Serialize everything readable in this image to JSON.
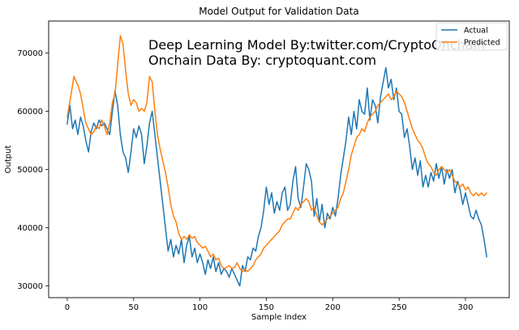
{
  "chart_data": {
    "type": "line",
    "title": "Model Output for Validation Data",
    "xlabel": "Sample Index",
    "ylabel": "Output",
    "xlim": [
      -14,
      333
    ],
    "ylim": [
      28000,
      75500
    ],
    "xticks": [
      0,
      50,
      100,
      150,
      200,
      250,
      300
    ],
    "yticks": [
      30000,
      40000,
      50000,
      60000,
      70000
    ],
    "grid": false,
    "legend_position": "top-right",
    "annotations": [
      "Deep Learning  Model By:twitter.com/CryptoOnchain",
      "Onchain Data By: cryptoquant.com"
    ],
    "series": [
      {
        "name": "Actual",
        "color": "#1f77b4",
        "points": [
          [
            0,
            57800
          ],
          [
            2,
            61000
          ],
          [
            4,
            57000
          ],
          [
            6,
            58500
          ],
          [
            8,
            56000
          ],
          [
            10,
            59000
          ],
          [
            12,
            57500
          ],
          [
            14,
            55000
          ],
          [
            16,
            53000
          ],
          [
            18,
            56500
          ],
          [
            20,
            58000
          ],
          [
            22,
            57000
          ],
          [
            24,
            58500
          ],
          [
            26,
            57500
          ],
          [
            28,
            58000
          ],
          [
            30,
            57000
          ],
          [
            32,
            56000
          ],
          [
            34,
            60000
          ],
          [
            36,
            63500
          ],
          [
            38,
            61000
          ],
          [
            40,
            56000
          ],
          [
            42,
            53000
          ],
          [
            44,
            52000
          ],
          [
            46,
            49500
          ],
          [
            48,
            53000
          ],
          [
            50,
            57000
          ],
          [
            52,
            55500
          ],
          [
            54,
            57500
          ],
          [
            56,
            56000
          ],
          [
            58,
            51000
          ],
          [
            60,
            54000
          ],
          [
            62,
            58000
          ],
          [
            64,
            60000
          ],
          [
            66,
            56000
          ],
          [
            68,
            52000
          ],
          [
            70,
            48000
          ],
          [
            72,
            44000
          ],
          [
            74,
            40000
          ],
          [
            76,
            36000
          ],
          [
            78,
            38000
          ],
          [
            80,
            35000
          ],
          [
            82,
            37000
          ],
          [
            84,
            35500
          ],
          [
            86,
            38000
          ],
          [
            88,
            34000
          ],
          [
            90,
            37000
          ],
          [
            92,
            38500
          ],
          [
            94,
            35000
          ],
          [
            96,
            36500
          ],
          [
            98,
            34000
          ],
          [
            100,
            35500
          ],
          [
            102,
            34000
          ],
          [
            104,
            32000
          ],
          [
            106,
            34500
          ],
          [
            108,
            33000
          ],
          [
            110,
            35000
          ],
          [
            112,
            32500
          ],
          [
            114,
            34000
          ],
          [
            116,
            32000
          ],
          [
            118,
            33000
          ],
          [
            120,
            32500
          ],
          [
            122,
            31500
          ],
          [
            124,
            33000
          ],
          [
            126,
            32000
          ],
          [
            128,
            31000
          ],
          [
            130,
            30000
          ],
          [
            132,
            33500
          ],
          [
            134,
            32500
          ],
          [
            136,
            35000
          ],
          [
            138,
            34500
          ],
          [
            140,
            36500
          ],
          [
            142,
            36000
          ],
          [
            144,
            38500
          ],
          [
            146,
            40000
          ],
          [
            148,
            43000
          ],
          [
            150,
            47000
          ],
          [
            152,
            44000
          ],
          [
            154,
            46000
          ],
          [
            156,
            42500
          ],
          [
            158,
            44500
          ],
          [
            160,
            43000
          ],
          [
            162,
            46000
          ],
          [
            164,
            47000
          ],
          [
            166,
            43000
          ],
          [
            168,
            44000
          ],
          [
            170,
            48000
          ],
          [
            172,
            50500
          ],
          [
            174,
            45000
          ],
          [
            176,
            43500
          ],
          [
            178,
            47000
          ],
          [
            180,
            51000
          ],
          [
            182,
            50000
          ],
          [
            184,
            48000
          ],
          [
            186,
            42000
          ],
          [
            188,
            45000
          ],
          [
            190,
            41000
          ],
          [
            192,
            44000
          ],
          [
            194,
            40000
          ],
          [
            196,
            42500
          ],
          [
            198,
            41500
          ],
          [
            200,
            43500
          ],
          [
            202,
            42000
          ],
          [
            204,
            45000
          ],
          [
            206,
            49000
          ],
          [
            208,
            52000
          ],
          [
            210,
            55000
          ],
          [
            212,
            59000
          ],
          [
            214,
            56000
          ],
          [
            216,
            60000
          ],
          [
            218,
            57000
          ],
          [
            220,
            62000
          ],
          [
            222,
            60000
          ],
          [
            224,
            59500
          ],
          [
            226,
            64000
          ],
          [
            228,
            58500
          ],
          [
            230,
            62000
          ],
          [
            232,
            61000
          ],
          [
            234,
            58000
          ],
          [
            236,
            62500
          ],
          [
            238,
            65000
          ],
          [
            240,
            67500
          ],
          [
            242,
            64000
          ],
          [
            244,
            65500
          ],
          [
            246,
            62000
          ],
          [
            248,
            64000
          ],
          [
            250,
            60000
          ],
          [
            252,
            59500
          ],
          [
            254,
            55500
          ],
          [
            256,
            57000
          ],
          [
            258,
            54000
          ],
          [
            260,
            50000
          ],
          [
            262,
            52000
          ],
          [
            264,
            49000
          ],
          [
            266,
            51500
          ],
          [
            268,
            47000
          ],
          [
            270,
            49000
          ],
          [
            272,
            47000
          ],
          [
            274,
            49500
          ],
          [
            276,
            48000
          ],
          [
            278,
            51000
          ],
          [
            280,
            48500
          ],
          [
            282,
            50500
          ],
          [
            284,
            47500
          ],
          [
            286,
            50000
          ],
          [
            288,
            48500
          ],
          [
            290,
            50000
          ],
          [
            292,
            46000
          ],
          [
            294,
            48000
          ],
          [
            296,
            46500
          ],
          [
            298,
            44000
          ],
          [
            300,
            46000
          ],
          [
            302,
            44000
          ],
          [
            304,
            42000
          ],
          [
            306,
            41500
          ],
          [
            308,
            43000
          ],
          [
            310,
            41500
          ],
          [
            312,
            40500
          ],
          [
            314,
            38000
          ],
          [
            316,
            35000
          ]
        ]
      },
      {
        "name": "Predicted",
        "color": "#ff7f0e",
        "points": [
          [
            0,
            59000
          ],
          [
            3,
            63000
          ],
          [
            5,
            66000
          ],
          [
            8,
            64500
          ],
          [
            10,
            63000
          ],
          [
            12,
            60500
          ],
          [
            14,
            58000
          ],
          [
            16,
            57000
          ],
          [
            18,
            56000
          ],
          [
            20,
            56500
          ],
          [
            22,
            57500
          ],
          [
            24,
            57000
          ],
          [
            26,
            58500
          ],
          [
            28,
            57500
          ],
          [
            30,
            56000
          ],
          [
            32,
            58000
          ],
          [
            34,
            61500
          ],
          [
            36,
            63000
          ],
          [
            38,
            68000
          ],
          [
            40,
            73000
          ],
          [
            42,
            71500
          ],
          [
            44,
            67000
          ],
          [
            46,
            63000
          ],
          [
            48,
            61000
          ],
          [
            50,
            62000
          ],
          [
            52,
            61500
          ],
          [
            54,
            60000
          ],
          [
            56,
            60500
          ],
          [
            58,
            60000
          ],
          [
            60,
            61500
          ],
          [
            62,
            66000
          ],
          [
            64,
            65000
          ],
          [
            66,
            60000
          ],
          [
            68,
            56000
          ],
          [
            70,
            53500
          ],
          [
            72,
            51500
          ],
          [
            74,
            49500
          ],
          [
            76,
            47000
          ],
          [
            78,
            44000
          ],
          [
            80,
            42000
          ],
          [
            82,
            41000
          ],
          [
            84,
            39000
          ],
          [
            86,
            38000
          ],
          [
            88,
            38500
          ],
          [
            90,
            38000
          ],
          [
            92,
            38800
          ],
          [
            94,
            38200
          ],
          [
            96,
            38500
          ],
          [
            98,
            37500
          ],
          [
            100,
            37000
          ],
          [
            102,
            36500
          ],
          [
            104,
            36800
          ],
          [
            106,
            36000
          ],
          [
            108,
            35000
          ],
          [
            110,
            35500
          ],
          [
            112,
            34500
          ],
          [
            114,
            34800
          ],
          [
            116,
            33500
          ],
          [
            118,
            33000
          ],
          [
            120,
            33200
          ],
          [
            122,
            33500
          ],
          [
            124,
            33000
          ],
          [
            126,
            33200
          ],
          [
            128,
            34000
          ],
          [
            130,
            33000
          ],
          [
            132,
            32500
          ],
          [
            134,
            32800
          ],
          [
            136,
            32500
          ],
          [
            138,
            33000
          ],
          [
            140,
            33500
          ],
          [
            142,
            34500
          ],
          [
            144,
            35000
          ],
          [
            146,
            35500
          ],
          [
            148,
            36500
          ],
          [
            150,
            37000
          ],
          [
            152,
            37500
          ],
          [
            154,
            38000
          ],
          [
            156,
            38500
          ],
          [
            158,
            39000
          ],
          [
            160,
            39500
          ],
          [
            162,
            40500
          ],
          [
            164,
            41000
          ],
          [
            166,
            41500
          ],
          [
            168,
            41500
          ],
          [
            170,
            42500
          ],
          [
            172,
            43500
          ],
          [
            174,
            43000
          ],
          [
            176,
            44000
          ],
          [
            178,
            44500
          ],
          [
            180,
            45000
          ],
          [
            182,
            44500
          ],
          [
            184,
            43000
          ],
          [
            186,
            43500
          ],
          [
            188,
            42000
          ],
          [
            190,
            41000
          ],
          [
            192,
            40500
          ],
          [
            194,
            41000
          ],
          [
            196,
            41500
          ],
          [
            198,
            42000
          ],
          [
            200,
            42500
          ],
          [
            202,
            43000
          ],
          [
            204,
            43500
          ],
          [
            206,
            45000
          ],
          [
            208,
            46000
          ],
          [
            210,
            48000
          ],
          [
            212,
            50000
          ],
          [
            214,
            52500
          ],
          [
            216,
            54000
          ],
          [
            218,
            55500
          ],
          [
            220,
            56000
          ],
          [
            222,
            57000
          ],
          [
            224,
            56500
          ],
          [
            226,
            58000
          ],
          [
            228,
            59000
          ],
          [
            230,
            59500
          ],
          [
            232,
            60000
          ],
          [
            234,
            61000
          ],
          [
            236,
            61500
          ],
          [
            238,
            62000
          ],
          [
            240,
            62500
          ],
          [
            242,
            63000
          ],
          [
            244,
            62000
          ],
          [
            246,
            62500
          ],
          [
            248,
            63500
          ],
          [
            250,
            63000
          ],
          [
            252,
            62500
          ],
          [
            254,
            61500
          ],
          [
            256,
            60000
          ],
          [
            258,
            58500
          ],
          [
            260,
            57000
          ],
          [
            262,
            56000
          ],
          [
            264,
            55000
          ],
          [
            266,
            54500
          ],
          [
            268,
            53500
          ],
          [
            270,
            52000
          ],
          [
            272,
            51000
          ],
          [
            274,
            50500
          ],
          [
            276,
            49500
          ],
          [
            278,
            49000
          ],
          [
            280,
            50000
          ],
          [
            282,
            50500
          ],
          [
            284,
            50000
          ],
          [
            286,
            49500
          ],
          [
            288,
            50000
          ],
          [
            290,
            49000
          ],
          [
            292,
            48000
          ],
          [
            294,
            47500
          ],
          [
            296,
            47000
          ],
          [
            298,
            47500
          ],
          [
            300,
            46500
          ],
          [
            302,
            47000
          ],
          [
            304,
            46000
          ],
          [
            306,
            45500
          ],
          [
            308,
            46000
          ],
          [
            310,
            45500
          ],
          [
            312,
            46000
          ],
          [
            314,
            45500
          ],
          [
            316,
            46000
          ]
        ]
      }
    ]
  }
}
